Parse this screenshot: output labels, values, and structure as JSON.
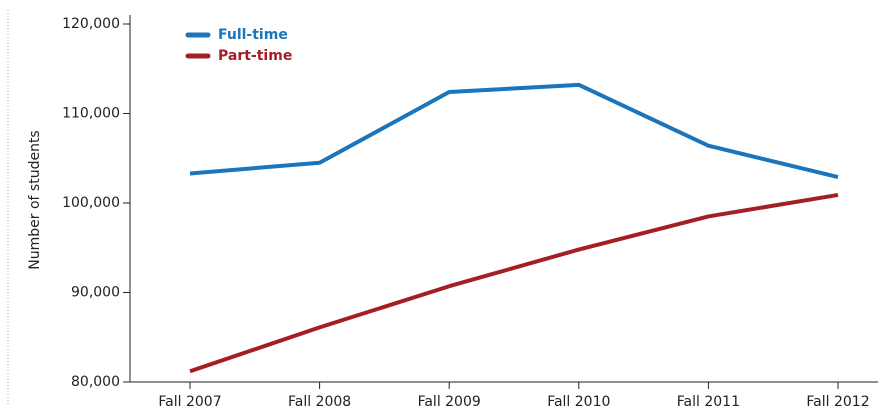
{
  "chart_data": {
    "type": "line",
    "y_label": "Number of students",
    "categories": [
      "Fall 2007",
      "Fall 2008",
      "Fall 2009",
      "Fall 2010",
      "Fall 2011",
      "Fall 2012"
    ],
    "series": [
      {
        "name": "Full-time",
        "color": "#1a75bb",
        "values": [
          103300,
          104500,
          112400,
          113200,
          106400,
          102900
        ]
      },
      {
        "name": "Part-time",
        "color": "#a31f24",
        "values": [
          81200,
          86100,
          90700,
          94800,
          98500,
          100900
        ]
      }
    ],
    "ylim": [
      80000,
      120000
    ],
    "yticks": [
      {
        "value": 80000,
        "label": "80,000"
      },
      {
        "value": 90000,
        "label": "90,000"
      },
      {
        "value": 100000,
        "label": "100,000"
      },
      {
        "value": 110000,
        "label": "110,000"
      },
      {
        "value": 120000,
        "label": "120,000"
      }
    ],
    "legend": "upper left"
  }
}
